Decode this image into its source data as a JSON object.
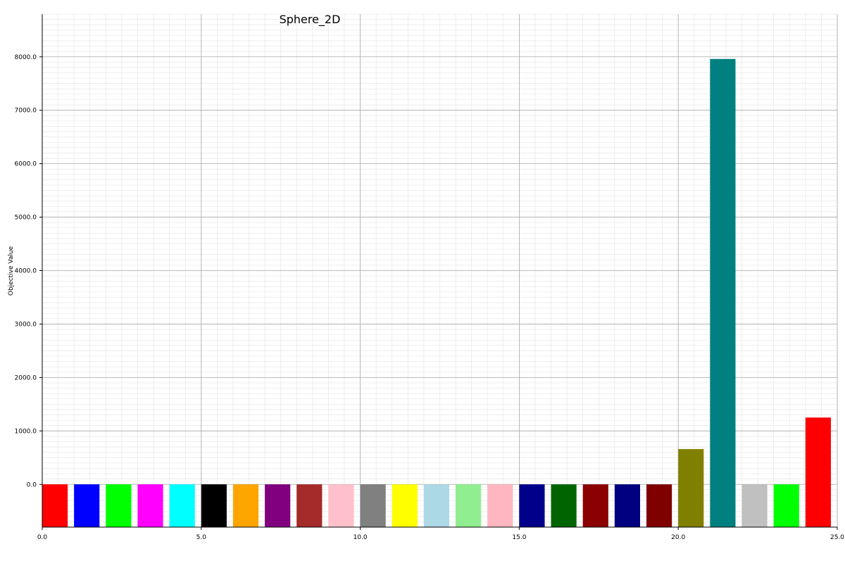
{
  "chart_data": {
    "type": "bar",
    "title": "Sphere_2D",
    "xlabel": "",
    "ylabel": "Objective Value",
    "xlim": [
      0.0,
      25.0
    ],
    "ylim": [
      -800,
      8800
    ],
    "x_ticks": [
      "0.0",
      "5.0",
      "10.0",
      "15.0",
      "20.0",
      "25.0"
    ],
    "y_ticks": [
      "0.0",
      "1000.0",
      "2000.0",
      "3000.0",
      "4000.0",
      "5000.0",
      "6000.0",
      "7000.0",
      "8000.0"
    ],
    "grid": true,
    "bar_width": 0.8,
    "bars": [
      {
        "x": 0.4,
        "value": -800,
        "color": "#ff0000"
      },
      {
        "x": 1.4,
        "value": -800,
        "color": "#0000ff"
      },
      {
        "x": 2.4,
        "value": -800,
        "color": "#00ff00"
      },
      {
        "x": 3.4,
        "value": -800,
        "color": "#ff00ff"
      },
      {
        "x": 4.4,
        "value": -800,
        "color": "#00ffff"
      },
      {
        "x": 5.4,
        "value": -800,
        "color": "#000000"
      },
      {
        "x": 6.4,
        "value": -800,
        "color": "#ffa500"
      },
      {
        "x": 7.4,
        "value": -800,
        "color": "#800080"
      },
      {
        "x": 8.4,
        "value": -800,
        "color": "#a52a2a"
      },
      {
        "x": 9.4,
        "value": -800,
        "color": "#ffc0cb"
      },
      {
        "x": 10.4,
        "value": -800,
        "color": "#808080"
      },
      {
        "x": 11.4,
        "value": -800,
        "color": "#ffff00"
      },
      {
        "x": 12.4,
        "value": -800,
        "color": "#add8e6"
      },
      {
        "x": 13.4,
        "value": -800,
        "color": "#90ee90"
      },
      {
        "x": 14.4,
        "value": -800,
        "color": "#ffb6c1"
      },
      {
        "x": 15.4,
        "value": -800,
        "color": "#00008b"
      },
      {
        "x": 16.4,
        "value": -800,
        "color": "#006400"
      },
      {
        "x": 17.4,
        "value": -800,
        "color": "#8b0000"
      },
      {
        "x": 18.4,
        "value": -800,
        "color": "#000080"
      },
      {
        "x": 19.4,
        "value": -800,
        "color": "#800000"
      },
      {
        "x": 20.4,
        "value": 660,
        "color": "#808000"
      },
      {
        "x": 21.4,
        "value": 7960,
        "color": "#008080"
      },
      {
        "x": 22.4,
        "value": -800,
        "color": "#c0c0c0"
      },
      {
        "x": 23.4,
        "value": -800,
        "color": "#00ff00"
      },
      {
        "x": 24.4,
        "value": 1250,
        "color": "#ff0000"
      }
    ]
  }
}
